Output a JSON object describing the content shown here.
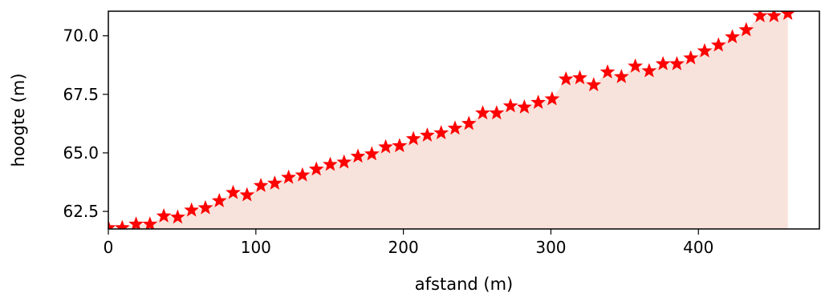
{
  "chart_data": {
    "type": "area",
    "xlabel": "afstand (m)",
    "ylabel": "hoogte (m)",
    "xlim": [
      0,
      482
    ],
    "ylim": [
      61.75,
      71.05
    ],
    "grid": false,
    "fill_color": "#f8e3dc",
    "marker_color": "#ff0000",
    "marker": "star",
    "x_ticks": [
      0,
      100,
      200,
      300,
      400
    ],
    "x_tick_labels": [
      "0",
      "100",
      "200",
      "300",
      "400"
    ],
    "y_ticks": [
      62.5,
      65.0,
      67.5,
      70.0
    ],
    "y_tick_labels": [
      "62.5",
      "65.0",
      "67.5",
      "70.0"
    ],
    "x": [
      0,
      9.4,
      18.8,
      28.2,
      37.6,
      47,
      56.4,
      65.8,
      75.2,
      84.6,
      94,
      103.4,
      112.8,
      122.2,
      131.6,
      141,
      150.4,
      159.8,
      169.2,
      178.6,
      188,
      197.4,
      206.8,
      216.2,
      225.6,
      235,
      244.4,
      253.8,
      263.2,
      272.6,
      282,
      291.4,
      300.8,
      310.2,
      319.6,
      329,
      338.4,
      347.8,
      357.2,
      366.6,
      376,
      385.4,
      394.8,
      404.2,
      413.6,
      423,
      432.4,
      441.8,
      451.2,
      460.6
    ],
    "y": [
      61.8,
      61.8,
      61.95,
      61.95,
      62.3,
      62.25,
      62.55,
      62.65,
      62.95,
      63.3,
      63.2,
      63.6,
      63.7,
      63.95,
      64.05,
      64.3,
      64.5,
      64.6,
      64.85,
      64.95,
      65.25,
      65.3,
      65.6,
      65.75,
      65.85,
      66.05,
      66.25,
      66.7,
      66.7,
      67.0,
      66.95,
      67.15,
      67.3,
      68.15,
      68.2,
      67.9,
      68.45,
      68.25,
      68.7,
      68.5,
      68.8,
      68.8,
      69.05,
      69.35,
      69.6,
      69.95,
      70.25,
      70.85,
      70.85,
      70.95
    ]
  }
}
